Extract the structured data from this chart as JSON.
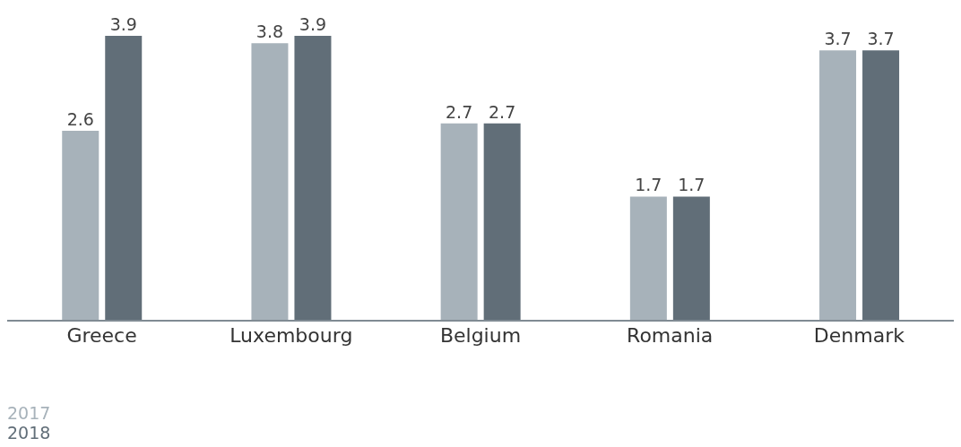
{
  "chart_data": {
    "type": "bar",
    "categories": [
      "Greece",
      "Luxembourg",
      "Belgium",
      "Romania",
      "Denmark"
    ],
    "series": [
      {
        "name": "2017",
        "color": "#a7b2ba",
        "values": [
          2.6,
          3.8,
          2.7,
          1.7,
          3.7
        ]
      },
      {
        "name": "2018",
        "color": "#616e78",
        "values": [
          3.9,
          3.9,
          2.7,
          1.7,
          3.7
        ]
      }
    ],
    "data_labels": true,
    "legend": "bottom left",
    "grid": false
  }
}
